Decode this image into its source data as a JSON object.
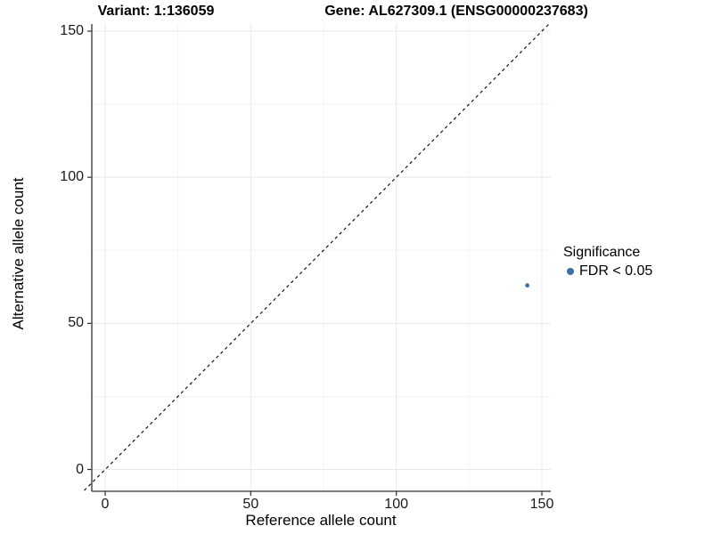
{
  "titles": {
    "variant": "Variant: 1:136059",
    "gene": "Gene: AL627309.1 (ENSG00000237683)"
  },
  "axes": {
    "x": {
      "label": "Reference allele count",
      "ticks": [
        0,
        50,
        100,
        150
      ],
      "minor_ticks": [
        25,
        75,
        125
      ]
    },
    "y": {
      "label": "Alternative allele count",
      "ticks": [
        0,
        50,
        100,
        150
      ],
      "minor_ticks": [
        25,
        75,
        125
      ]
    }
  },
  "legend": {
    "title": "Significance",
    "items": [
      {
        "label": "FDR < 0.05",
        "color": "#3b6fa5"
      }
    ]
  },
  "chart_data": {
    "type": "scatter",
    "title": "Variant: 1:136059 | Gene: AL627309.1 (ENSG00000237683)",
    "xlabel": "Reference allele count",
    "ylabel": "Alternative allele count",
    "xlim": [
      0,
      150
    ],
    "ylim": [
      0,
      150
    ],
    "points": [
      {
        "x": 145,
        "y": 63,
        "series": "FDR < 0.05"
      }
    ],
    "reference_line": {
      "type": "identity y=x",
      "style": "dashed",
      "color": "#000000"
    },
    "grid": true,
    "legend_position": "right"
  },
  "colors": {
    "point": "#3b6fa5",
    "axis": "#2f2f2f",
    "tick_text": "#1a1a1a",
    "grid_major": "#e8e8e8",
    "grid_minor": "#f3f3f3"
  }
}
